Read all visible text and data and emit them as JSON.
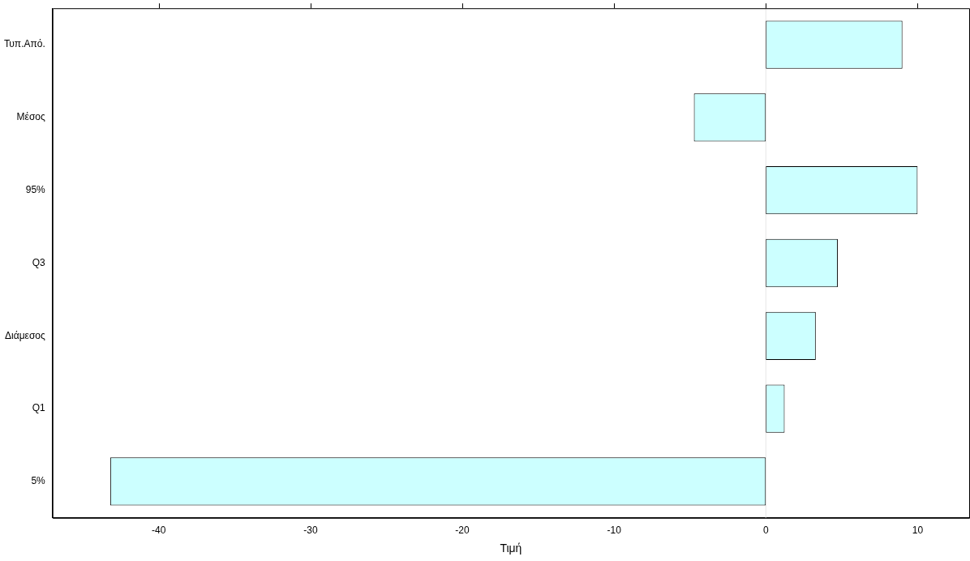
{
  "chart_data": {
    "type": "bar",
    "orientation": "horizontal",
    "xlabel": "Τιμή",
    "categories": [
      "Τυπ.Από.",
      "Μέσος",
      "95%",
      "Q3",
      "Διάμεσος",
      "Q1",
      "5%"
    ],
    "values": [
      9.0,
      -4.74,
      10.0,
      4.74,
      3.29,
      1.24,
      -43.2
    ],
    "color": "#ccffff",
    "xlim": [
      -47,
      13.4
    ],
    "xticks": [
      -40,
      -30,
      -20,
      -10,
      0,
      10
    ],
    "ref_lines": [
      {
        "axis": "x",
        "value": 0,
        "color": "#e6e6e6"
      }
    ],
    "grid": false,
    "legend": false
  }
}
